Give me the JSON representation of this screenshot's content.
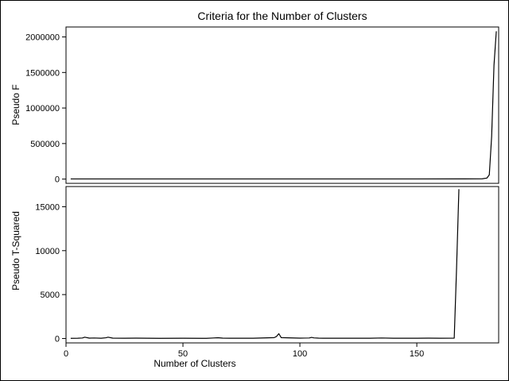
{
  "chart_data": {
    "type": "line",
    "title": "Criteria for the Number of Clusters",
    "xlabel": "Number of Clusters",
    "xlim": [
      0,
      185
    ],
    "x_ticks": [
      0,
      50,
      100,
      150
    ],
    "grid": false,
    "panels": [
      {
        "ylabel": "Pseudo F",
        "ylim": [
          -60000,
          2140000
        ],
        "y_ticks": [
          0,
          500000,
          1000000,
          1500000,
          2000000
        ],
        "series": [
          {
            "x": [
              2,
              50,
              100,
              150,
              170,
              178,
              180,
              181,
              182,
              183,
              184
            ],
            "y": [
              2000,
              2000,
              2000,
              2000,
              2500,
              4000,
              15000,
              60000,
              600000,
              1600000,
              2080000
            ]
          }
        ]
      },
      {
        "ylabel": "Pseudo T-Squared",
        "ylim": [
          -500,
          17300
        ],
        "y_ticks": [
          0,
          5000,
          10000,
          15000
        ],
        "series": [
          {
            "x": [
              2,
              5,
              7,
              8,
              10,
              12,
              15,
              17,
              18,
              20,
              25,
              30,
              40,
              50,
              60,
              63,
              65,
              67,
              70,
              80,
              89,
              90,
              91,
              92,
              100,
              104,
              105,
              106,
              108,
              110,
              120,
              130,
              135,
              140,
              150,
              155,
              160,
              166,
              167,
              168
            ],
            "y": [
              20,
              30,
              60,
              150,
              40,
              60,
              30,
              80,
              150,
              40,
              30,
              40,
              20,
              30,
              20,
              60,
              90,
              40,
              30,
              30,
              100,
              230,
              550,
              100,
              40,
              60,
              130,
              70,
              40,
              30,
              30,
              30,
              60,
              30,
              30,
              40,
              30,
              40,
              8000,
              17000
            ]
          }
        ]
      }
    ]
  }
}
